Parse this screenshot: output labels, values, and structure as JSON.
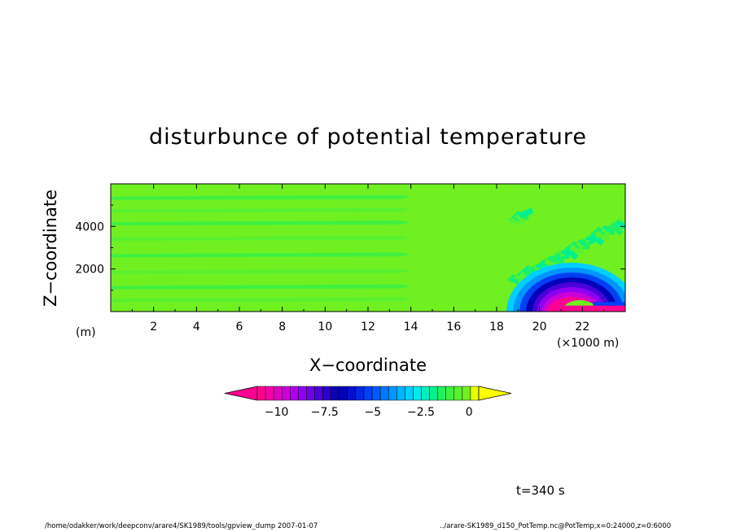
{
  "chart_data": {
    "type": "heatmap",
    "title": "disturbunce of potential temperature",
    "xlabel": "X−coordinate",
    "ylabel": "Z−coordinate",
    "x_unit": "(×1000 m)",
    "y_unit": "(m)",
    "xlim": [
      0,
      24000
    ],
    "ylim": [
      0,
      6000
    ],
    "x_ticks": [
      "2",
      "4",
      "6",
      "8",
      "10",
      "12",
      "14",
      "16",
      "18",
      "20",
      "22"
    ],
    "x_tick_values": [
      2000,
      4000,
      6000,
      8000,
      10000,
      12000,
      14000,
      16000,
      18000,
      20000,
      22000
    ],
    "y_ticks": [
      "2000",
      "4000"
    ],
    "y_tick_values": [
      2000,
      4000
    ],
    "colorbar": {
      "min": -11,
      "max": 0.5,
      "step": 0.5,
      "tick_labels": [
        "−10",
        "−7.5",
        "−5",
        "−2.5",
        "0"
      ],
      "tick_values": [
        -10,
        -7.5,
        -5,
        -2.5,
        0
      ],
      "colors": [
        "#ff0090",
        "#f200a8",
        "#e000c0",
        "#cc00d8",
        "#b000e8",
        "#9000f0",
        "#6e00e6",
        "#4a00d8",
        "#2800c8",
        "#0c00b0",
        "#0000b8",
        "#0010d0",
        "#0028e4",
        "#0040f4",
        "#0058ff",
        "#0078ff",
        "#0096ff",
        "#00b4ff",
        "#00d0ff",
        "#00e8f0",
        "#00f0c0",
        "#00f090",
        "#20f060",
        "#40f040",
        "#58f030",
        "#70f020",
        "#e6ff00"
      ],
      "over_color": "#ffff00",
      "under_color": "#ff0090"
    },
    "field_description_values": {
      "background": -0.1,
      "plume_min": -10.5
    }
  },
  "labels": {
    "time": "t=340 s",
    "footer_left": "/home/odakker/work/deepconv/arare4/SK1989/tools/gpview_dump  2007-01-07",
    "footer_right": "../arare-SK1989_d150_PotTemp.nc@PotTemp,x=0:24000,z=0:6000"
  }
}
